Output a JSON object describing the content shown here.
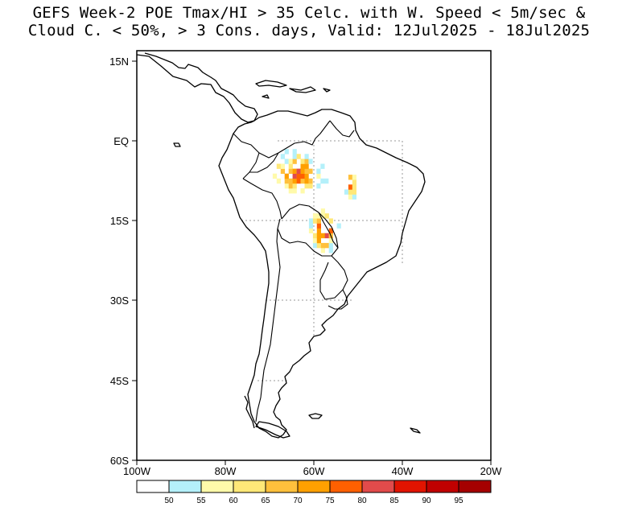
{
  "title": {
    "line1": "GEFS Week-2 POE Tmax/HI > 35 Celc. with W. Speed < 5m/sec &",
    "line2": "Cloud C. < 50%, > 3 Cons. days, Valid: 12Jul2025 - 18Jul2025"
  },
  "map": {
    "region": "South America",
    "lon_range": [
      -100,
      -20
    ],
    "lat_range": [
      -60,
      15
    ],
    "grid": "dotted every 15 degrees over land",
    "lat_ticks": [
      "15N",
      "EQ",
      "15S",
      "30S",
      "45S",
      "60S"
    ],
    "lon_ticks": [
      "100W",
      "80W",
      "60W",
      "40W",
      "20W"
    ]
  },
  "colorbar": {
    "labels": [
      "50",
      "55",
      "60",
      "65",
      "70",
      "75",
      "80",
      "85",
      "90",
      "95"
    ],
    "colors": [
      "#ffffff",
      "#b4f0fa",
      "#fffaaa",
      "#ffe878",
      "#ffc03c",
      "#ffa000",
      "#ff6000",
      "#e14b4b",
      "#e11400",
      "#c00000",
      "#a50000"
    ]
  },
  "shaded_regions": [
    {
      "name": "Amazon basin cluster",
      "lon_range": [
        -72,
        -56
      ],
      "lat_range": [
        -12,
        -2
      ],
      "max_probability": 90
    },
    {
      "name": "Eastern Amazon band",
      "lon_range": [
        -54,
        -50
      ],
      "lat_range": [
        -14,
        -5
      ],
      "max_probability": 85
    },
    {
      "name": "Bolivia/Mato Grosso core",
      "lon_range": [
        -62,
        -54
      ],
      "lat_range": [
        -22,
        -13
      ],
      "max_probability": 95
    }
  ]
}
